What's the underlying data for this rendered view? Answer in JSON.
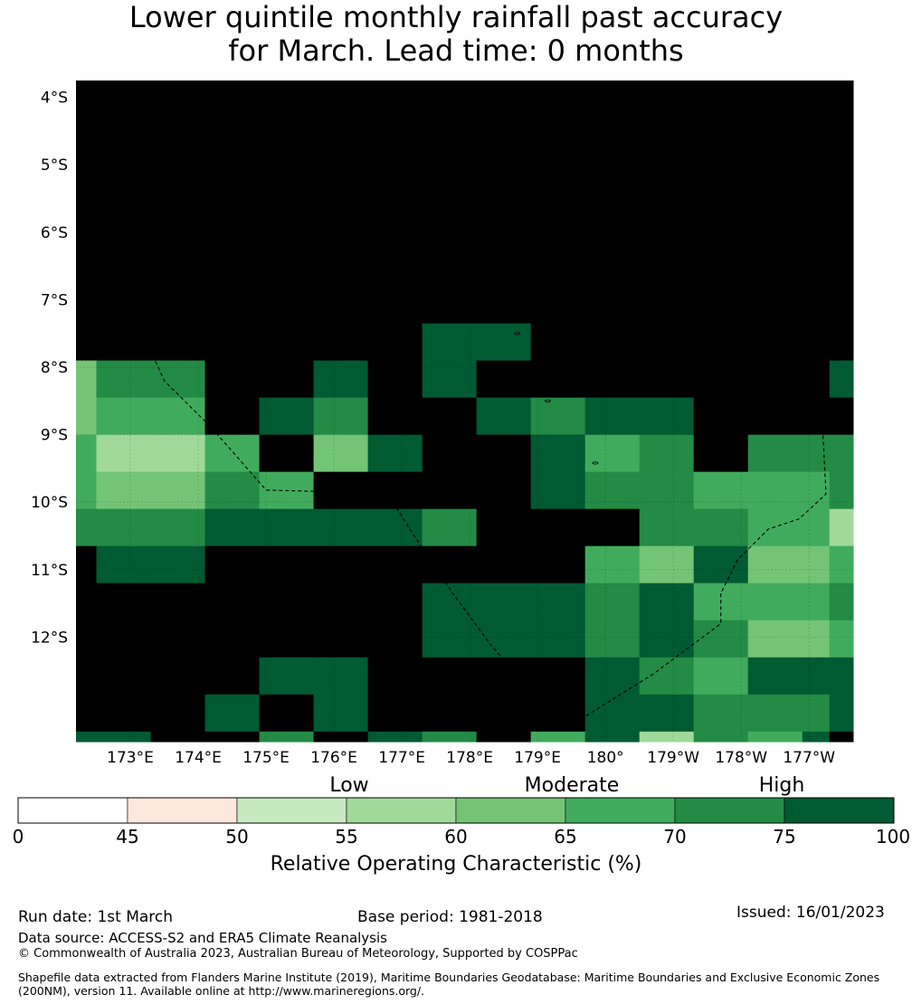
{
  "title": {
    "line1": "Lower quintile monthly rainfall past accuracy",
    "line2": "for March. Lead time: 0 months"
  },
  "map": {
    "lon_min": 172.2,
    "lon_max": 183.65,
    "lat_top": -3.75,
    "lat_bottom": -13.55,
    "lat_labels": [
      "4°S",
      "5°S",
      "6°S",
      "7°S",
      "8°S",
      "9°S",
      "10°S",
      "11°S",
      "12°S"
    ],
    "lat_values": [
      -4,
      -5,
      -6,
      -7,
      -8,
      -9,
      -10,
      -11,
      -12
    ],
    "lon_labels": [
      "173°E",
      "174°E",
      "175°E",
      "176°E",
      "177°E",
      "178°E",
      "179°E",
      "180°",
      "179°W",
      "178°W",
      "177°W"
    ],
    "lon_values": [
      173,
      174,
      175,
      176,
      177,
      178,
      179,
      180,
      181,
      182,
      183
    ],
    "grid_lon_edges": [
      172.2,
      172.5,
      173.3,
      174.1,
      174.9,
      175.7,
      176.5,
      177.3,
      178.1,
      178.9,
      179.7,
      180.5,
      181.3,
      182.1,
      182.9,
      183.3,
      183.65
    ],
    "grid_lat_edges": [
      -3.75,
      -4.05,
      -4.6,
      -5.15,
      -5.7,
      -6.25,
      -6.8,
      -7.35,
      -7.9,
      -8.45,
      -9.0,
      -9.55,
      -10.1,
      -10.65,
      -11.2,
      -11.75,
      -12.3,
      -12.85,
      -13.4,
      -13.55
    ],
    "roc_grid": [
      [
        8,
        8,
        8,
        8,
        8,
        8,
        8,
        8,
        8,
        8,
        8,
        8,
        8,
        8,
        8,
        8
      ],
      [
        8,
        8,
        8,
        8,
        8,
        8,
        8,
        8,
        8,
        8,
        8,
        8,
        8,
        8,
        8,
        8
      ],
      [
        8,
        8,
        8,
        8,
        8,
        8,
        8,
        8,
        8,
        8,
        8,
        8,
        8,
        8,
        8,
        8
      ],
      [
        8,
        8,
        8,
        8,
        8,
        8,
        8,
        8,
        8,
        8,
        8,
        8,
        8,
        8,
        8,
        8
      ],
      [
        8,
        8,
        8,
        8,
        8,
        8,
        8,
        8,
        8,
        8,
        8,
        8,
        8,
        8,
        8,
        8
      ],
      [
        8,
        8,
        8,
        8,
        8,
        8,
        8,
        8,
        8,
        8,
        8,
        8,
        8,
        8,
        8,
        8
      ],
      [
        8,
        8,
        8,
        8,
        8,
        8,
        8,
        8,
        8,
        8,
        8,
        8,
        8,
        8,
        8,
        8
      ],
      [
        8,
        8,
        8,
        8,
        8,
        8,
        8,
        7,
        7,
        8,
        8,
        8,
        8,
        8,
        8,
        8
      ],
      [
        4,
        6,
        6,
        8,
        8,
        7,
        8,
        7,
        8,
        8,
        8,
        8,
        8,
        8,
        8,
        7
      ],
      [
        4,
        5,
        5,
        8,
        7,
        6,
        8,
        8,
        7,
        6,
        7,
        7,
        8,
        8,
        8,
        8
      ],
      [
        5,
        3,
        3,
        5,
        8,
        4,
        7,
        8,
        8,
        7,
        5,
        6,
        8,
        6,
        6,
        6
      ],
      [
        5,
        4,
        4,
        6,
        5,
        8,
        8,
        8,
        8,
        7,
        6,
        6,
        5,
        5,
        5,
        6
      ],
      [
        6,
        6,
        6,
        7,
        7,
        7,
        7,
        6,
        8,
        8,
        8,
        6,
        6,
        5,
        5,
        3
      ],
      [
        8,
        7,
        7,
        8,
        8,
        8,
        8,
        8,
        8,
        8,
        5,
        4,
        7,
        4,
        4,
        5
      ],
      [
        8,
        8,
        8,
        8,
        8,
        8,
        8,
        7,
        7,
        7,
        6,
        7,
        5,
        5,
        5,
        6
      ],
      [
        8,
        8,
        8,
        8,
        8,
        8,
        8,
        7,
        7,
        7,
        6,
        7,
        6,
        4,
        4,
        5
      ],
      [
        8,
        8,
        8,
        8,
        7,
        7,
        8,
        8,
        8,
        8,
        7,
        6,
        5,
        7,
        7,
        7
      ],
      [
        8,
        8,
        8,
        7,
        8,
        7,
        8,
        8,
        8,
        8,
        7,
        7,
        6,
        6,
        6,
        7
      ],
      [
        7,
        7,
        8,
        8,
        6,
        8,
        7,
        6,
        8,
        5,
        7,
        3,
        6,
        5,
        7,
        8
      ]
    ],
    "eez_boundary": [
      [
        173.0,
        -4.3
      ],
      [
        173.55,
        -4.15
      ],
      [
        176.0,
        -4.08
      ],
      [
        177.1,
        -4.38
      ],
      [
        179.9,
        -3.98
      ],
      [
        180.25,
        -4.55
      ],
      [
        180.9,
        -5.1
      ],
      [
        181.4,
        -5.8
      ],
      [
        181.85,
        -6.5
      ],
      [
        182.5,
        -7.35
      ],
      [
        182.9,
        -8.1
      ],
      [
        183.2,
        -8.9
      ],
      [
        183.25,
        -9.88
      ],
      [
        182.85,
        -10.25
      ],
      [
        182.4,
        -10.4
      ],
      [
        181.95,
        -10.85
      ],
      [
        181.7,
        -11.35
      ],
      [
        181.7,
        -11.8
      ],
      [
        180.7,
        -12.55
      ],
      [
        179.5,
        -13.3
      ],
      [
        178.9,
        -12.8
      ],
      [
        178.3,
        -12.1
      ],
      [
        177.75,
        -11.35
      ],
      [
        177.15,
        -10.45
      ],
      [
        176.9,
        -10.05
      ],
      [
        176.1,
        -9.85
      ],
      [
        175.0,
        -9.82
      ],
      [
        174.2,
        -8.9
      ],
      [
        173.5,
        -8.2
      ],
      [
        173.1,
        -7.3
      ],
      [
        172.7,
        -6.4
      ],
      [
        172.6,
        -5.3
      ],
      [
        173.0,
        -4.3
      ]
    ],
    "islands": [
      [
        176.05,
        -5.65
      ],
      [
        176.25,
        -6.3
      ],
      [
        177.25,
        -6.1
      ],
      [
        178.7,
        -7.5
      ],
      [
        178.35,
        -8.05
      ],
      [
        179.15,
        -8.5
      ],
      [
        179.85,
        -9.42
      ],
      [
        179.55,
        -10.8
      ],
      [
        177.05,
        -12.52
      ],
      [
        177.0,
        -7.3
      ]
    ]
  },
  "colorbar": {
    "ticks": [
      "0",
      "45",
      "50",
      "55",
      "60",
      "65",
      "70",
      "75",
      "100"
    ],
    "tiers": {
      "low": "Low",
      "moderate": "Moderate",
      "high": "High"
    },
    "label": "Relative Operating Characteristic (%)",
    "colors": [
      "#ffffff",
      "#fee8de",
      "#c7e9c0",
      "#a1d99b",
      "#74c476",
      "#41ab5d",
      "#238b45",
      "#005a32"
    ]
  },
  "footer": {
    "run_date": "Run date: 1st March",
    "base_period": "Base period: 1981-2018",
    "issued": "Issued: 16/01/2023",
    "data_source": "Data source: ACCESS-S2 and ERA5 Climate Reanalysis",
    "copyright": "© Commonwealth of Australia 2023, Australian Bureau of Meteorology, Supported by COSPPac",
    "shapefile": "Shapefile data extracted from Flanders Marine Institute (2019), Maritime Boundaries Geodatabase: Maritime Boundaries and Exclusive Economic Zones (200NM), version 11. Available online at http://www.marineregions.org/."
  }
}
